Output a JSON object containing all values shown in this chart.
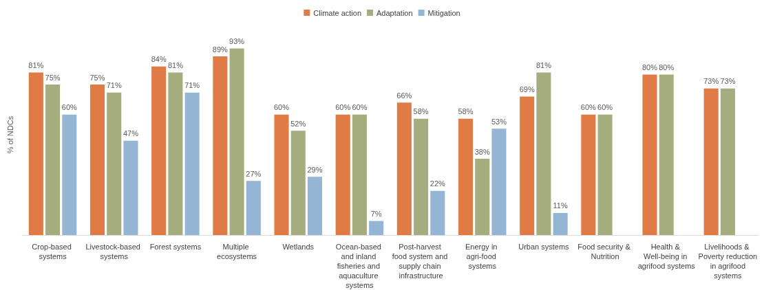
{
  "chart_data": {
    "type": "bar",
    "ylabel": "% of NDCs",
    "legend": "top",
    "grid": false,
    "categories": [
      "Crop-based systems",
      "Livestock-based systems",
      "Forest systems",
      "Multiple ecosystems",
      "Wetlands",
      "Ocean-based and inland fisheries and aquaculture systems",
      "Post-harvest food system and supply chain infrastructure",
      "Energy in agri-food systems",
      "Urban systems",
      "Food security & Nutrition",
      "Health & Well-being in agrifood systems",
      "Livelihoods & Poverty reduction in agrifood systems"
    ],
    "series": [
      {
        "name": "Climate action",
        "color": "#e07b45",
        "values": [
          81,
          75,
          84,
          89,
          60,
          60,
          66,
          58,
          69,
          60,
          80,
          73
        ],
        "value_labels": [
          "81%",
          "75%",
          "84%",
          "89%",
          "60%",
          "60%",
          "66%",
          "58%",
          "69%",
          "60%",
          "80%",
          "73%"
        ]
      },
      {
        "name": "Adaptation",
        "color": "#a5ad7f",
        "values": [
          75,
          71,
          81,
          93,
          52,
          60,
          58,
          38,
          81,
          60,
          80,
          73
        ],
        "value_labels": [
          "75%",
          "71%",
          "81%",
          "93%",
          "52%",
          "60%",
          "58%",
          "38%",
          "81%",
          "60%",
          "80%",
          "73%"
        ]
      },
      {
        "name": "Mitigation",
        "color": "#94b6d4",
        "values": [
          60,
          47,
          71,
          27,
          29,
          7,
          22,
          53,
          11,
          null,
          null,
          null
        ],
        "value_labels": [
          "60%",
          "47%",
          "71%",
          "27%",
          "29%",
          "7%",
          "22%",
          "53%",
          "11%",
          null,
          null,
          null
        ]
      }
    ]
  }
}
